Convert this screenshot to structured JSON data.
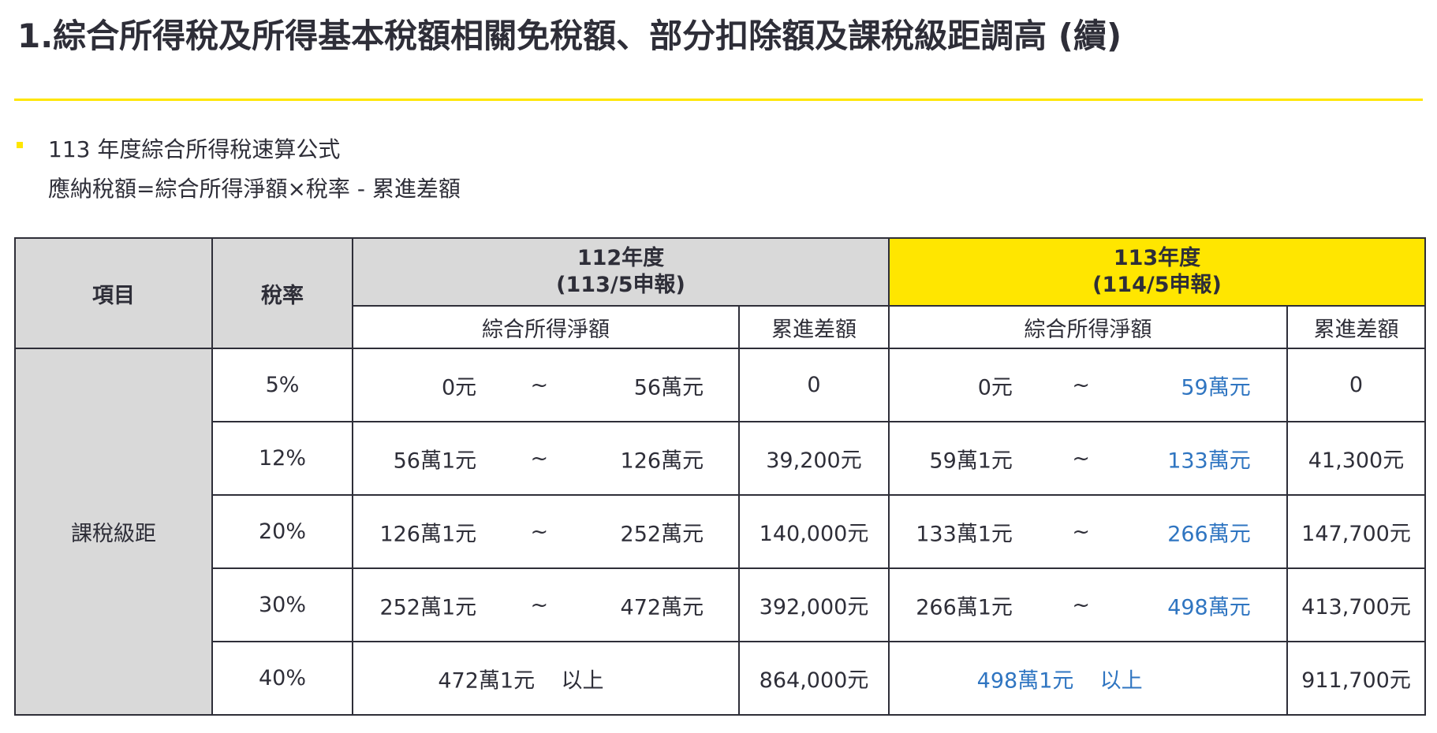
{
  "title": "1.綜合所得稅及所得基本稅額相關免稅額、部分扣除額及課稅級距調高 (續)",
  "bullet": {
    "line1": "113 年度綜合所得稅速算公式",
    "line2": "應納稅額=綜合所得淨額×稅率 - 累進差額"
  },
  "table": {
    "header": {
      "item": "項目",
      "rate": "稅率",
      "year112_line1": "112年度",
      "year112_line2": "(113/5申報)",
      "year113_line1": "113年度",
      "year113_line2": "(114/5申報)",
      "net_income": "綜合所得淨額",
      "progressive_diff": "累進差額"
    },
    "row_label": "課稅級距",
    "range_tilde": "~",
    "rows": [
      {
        "rate": "5%",
        "y112_from": "0元",
        "y112_to": "56萬元",
        "y112_diff": "0",
        "y113_from": "0元",
        "y113_to": "59萬元",
        "y113_diff": "0"
      },
      {
        "rate": "12%",
        "y112_from": "56萬1元",
        "y112_to": "126萬元",
        "y112_diff": "39,200元",
        "y113_from": "59萬1元",
        "y113_to": "133萬元",
        "y113_diff": "41,300元"
      },
      {
        "rate": "20%",
        "y112_from": "126萬1元",
        "y112_to": "252萬元",
        "y112_diff": "140,000元",
        "y113_from": "133萬1元",
        "y113_to": "266萬元",
        "y113_diff": "147,700元"
      },
      {
        "rate": "30%",
        "y112_from": "252萬1元",
        "y112_to": "472萬元",
        "y112_diff": "392,000元",
        "y113_from": "266萬1元",
        "y113_to": "498萬元",
        "y113_diff": "413,700元"
      }
    ],
    "last_row": {
      "rate": "40%",
      "y112_from": "472萬1元",
      "y112_above": "以上",
      "y112_diff": "864,000元",
      "y113_from": "498萬1元",
      "y113_above": "以上",
      "y113_diff": "911,700元"
    }
  },
  "colors": {
    "accent_yellow": "#ffe600",
    "header_gray": "#d9d9d9",
    "text_dark": "#2e2e38",
    "value_blue": "#2f75c1"
  }
}
